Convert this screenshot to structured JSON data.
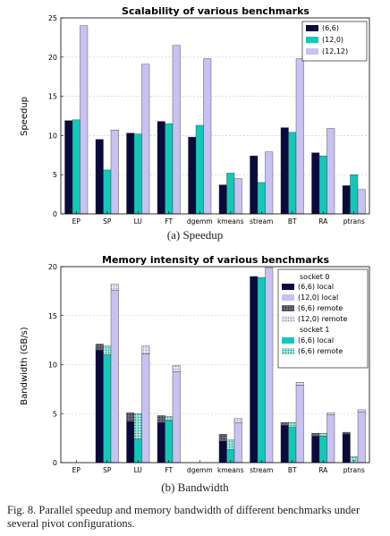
{
  "figure": {
    "caption_a": "(a) Speedup",
    "caption_b": "(b) Bandwidth",
    "fig_caption": "Fig. 8.  Parallel speedup and memory bandwidth of different benchmarks under several pivot configurations."
  },
  "colors": {
    "c66": "#0a0a3c",
    "c120": "#12c9b8",
    "c1212": "#c7c2f2",
    "grid": "#c8c8c8"
  },
  "chart_data": [
    {
      "type": "bar",
      "title": "Scalability of various benchmarks",
      "xlabel": "",
      "ylabel": "Speedup",
      "ylim": [
        0,
        25
      ],
      "yticks": [
        "0",
        "5",
        "10",
        "15",
        "20",
        "25"
      ],
      "grid": true,
      "legend_position": "top-right",
      "categories": [
        "EP",
        "SP",
        "LU",
        "FT",
        "dgemm",
        "kmeans",
        "stream",
        "BT",
        "RA",
        "ptrans"
      ],
      "series": [
        {
          "name": "(6,6)",
          "values": [
            11.9,
            9.5,
            10.3,
            11.8,
            9.8,
            3.7,
            7.4,
            11.0,
            7.8,
            3.6
          ]
        },
        {
          "name": "(12,0)",
          "values": [
            12.0,
            5.6,
            10.2,
            11.5,
            11.3,
            5.2,
            4.0,
            10.4,
            7.4,
            5.0
          ]
        },
        {
          "name": "(12,12)",
          "values": [
            24.0,
            10.7,
            19.1,
            21.5,
            19.8,
            4.5,
            7.9,
            19.8,
            10.9,
            3.1
          ]
        }
      ]
    },
    {
      "type": "bar",
      "title": "Memory intensity of various benchmarks",
      "xlabel": "",
      "ylabel": "Bandwidth (GB/s)",
      "ylim": [
        0,
        20
      ],
      "yticks": [
        "0",
        "5",
        "10",
        "15",
        "20"
      ],
      "grid": true,
      "legend_position": "top-right",
      "legend_groups": [
        "socket 0",
        "socket 1"
      ],
      "categories": [
        "EP",
        "SP",
        "LU",
        "FT",
        "dgemm",
        "kmeans",
        "stream",
        "BT",
        "RA",
        "ptrans"
      ],
      "series": [
        {
          "name": "(6,6) local",
          "socket": "socket 0",
          "values": [
            0,
            11.5,
            4.2,
            4.1,
            0,
            2.2,
            19.0,
            3.8,
            2.7,
            2.9
          ]
        },
        {
          "name": "(6,6) remote",
          "socket": "socket 0",
          "values": [
            0,
            0.6,
            0.9,
            0.7,
            0,
            0.7,
            0,
            0.3,
            0.3,
            0.2
          ]
        },
        {
          "name": "(12,0) local",
          "socket": "socket 0",
          "values": [
            0,
            17.6,
            11.1,
            9.3,
            0,
            4.1,
            19.9,
            7.9,
            4.9,
            5.2
          ]
        },
        {
          "name": "(12,0) remote",
          "socket": "socket 0",
          "values": [
            0,
            0.6,
            0.8,
            0.6,
            0,
            0.4,
            0,
            0.3,
            0.2,
            0.2
          ]
        },
        {
          "name": "(6,6) local",
          "socket": "socket 1",
          "values": [
            0,
            11.0,
            2.4,
            4.3,
            0,
            1.3,
            18.9,
            3.6,
            2.7,
            0
          ]
        },
        {
          "name": "(6,6) remote",
          "socket": "socket 1",
          "values": [
            0,
            0.9,
            2.6,
            0.4,
            0,
            1.0,
            0,
            0.5,
            0.3,
            0.6
          ]
        }
      ]
    }
  ]
}
